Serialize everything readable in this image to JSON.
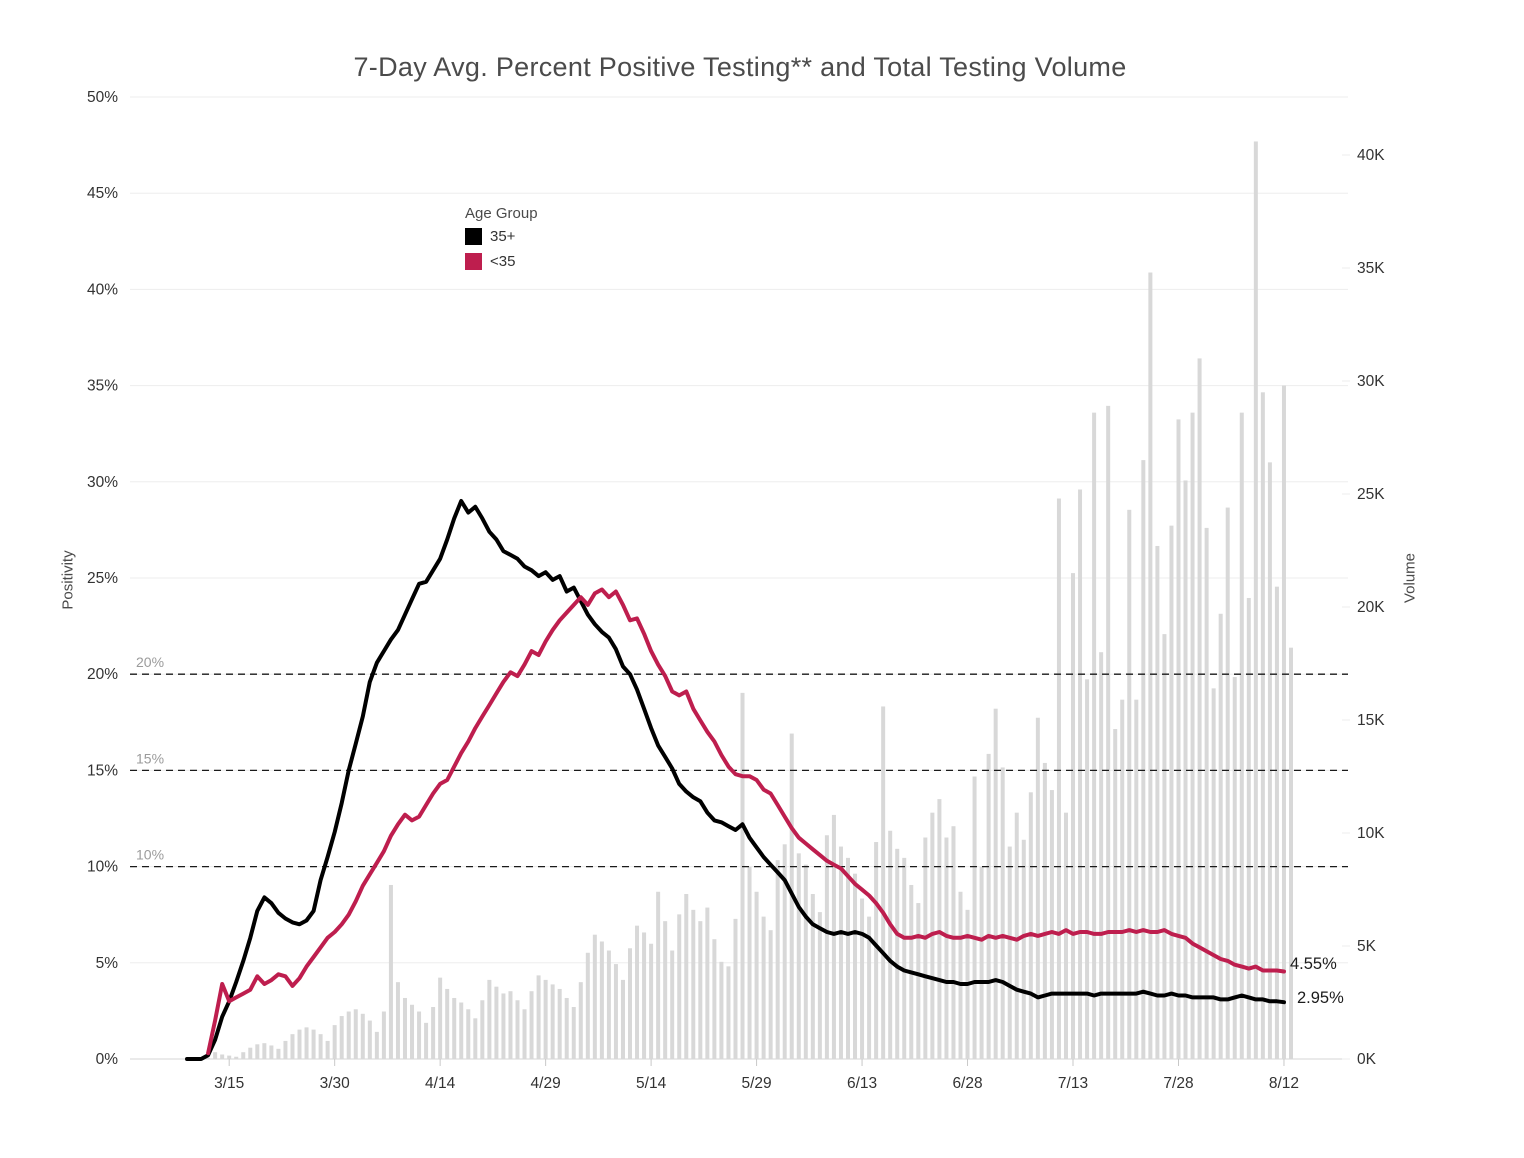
{
  "title": "7-Day Avg. Percent Positive Testing** and Total Testing Volume",
  "legend": {
    "title": "Age Group",
    "items": [
      {
        "label": "35+",
        "color": "#000000"
      },
      {
        "label": "<35",
        "color": "#be1e4e"
      }
    ]
  },
  "left_axis": {
    "title": "Positivity",
    "tick_labels": [
      "0%",
      "5%",
      "10%",
      "15%",
      "20%",
      "25%",
      "30%",
      "35%",
      "40%",
      "45%",
      "50%"
    ]
  },
  "right_axis": {
    "title": "Volume",
    "tick_labels": [
      "0K",
      "5K",
      "10K",
      "15K",
      "20K",
      "25K",
      "30K",
      "35K",
      "40K"
    ]
  },
  "x_axis": {
    "tick_labels": [
      "3/15",
      "3/30",
      "4/14",
      "4/29",
      "5/14",
      "5/29",
      "6/13",
      "6/28",
      "7/13",
      "7/28",
      "8/12"
    ]
  },
  "reference_lines": [
    {
      "label": "20%",
      "value": 20
    },
    {
      "label": "15%",
      "value": 15
    },
    {
      "label": "10%",
      "value": 10
    }
  ],
  "end_labels": {
    "under35": "4.55%",
    "over35": "2.95%"
  },
  "colors": {
    "line_35plus": "#000000",
    "line_under35": "#be1e4e",
    "bars": "#d8d8d8",
    "gridline": "#ededed",
    "axis_line": "#d6d6d6",
    "tick_mark": "#c8c8c8",
    "reference_line": "#1a1a1a",
    "reference_label": "#9b9b9b",
    "tick_text": "#333333"
  },
  "chart_data": {
    "type": "combo-line-bar",
    "frequency": "daily",
    "x_start": "3/9",
    "x_end": "8/13",
    "x_tick_labels": [
      "3/15",
      "3/30",
      "4/14",
      "4/29",
      "5/14",
      "5/29",
      "6/13",
      "6/28",
      "7/13",
      "7/28",
      "8/12"
    ],
    "x_tick_indices": [
      6,
      21,
      36,
      51,
      66,
      81,
      96,
      111,
      126,
      141,
      156
    ],
    "left_axis": {
      "label": "Positivity",
      "min": 0,
      "max": 50,
      "unit": "%",
      "tick_step": 5
    },
    "right_axis": {
      "label": "Volume",
      "min": 0,
      "max": 40,
      "unit": "K",
      "tick_step": 5
    },
    "legend_position": "inside-top-left",
    "grid": true,
    "series": [
      {
        "name": "35+",
        "type": "line",
        "axis": "left",
        "color": "#000000",
        "end_label": "2.95%",
        "values": [
          0,
          0,
          0,
          0.2,
          1.0,
          2.2,
          3.0,
          4.0,
          5.1,
          6.3,
          7.7,
          8.4,
          8.1,
          7.6,
          7.3,
          7.1,
          7.0,
          7.2,
          7.7,
          9.3,
          10.5,
          11.8,
          13.3,
          15.0,
          16.4,
          17.8,
          19.6,
          20.6,
          21.2,
          21.8,
          22.3,
          23.1,
          23.9,
          24.7,
          24.8,
          25.4,
          26.0,
          27.0,
          28.1,
          29.0,
          28.4,
          28.7,
          28.1,
          27.4,
          27.0,
          26.4,
          26.2,
          26.0,
          25.6,
          25.4,
          25.1,
          25.3,
          24.9,
          25.1,
          24.3,
          24.5,
          23.8,
          23.1,
          22.6,
          22.2,
          21.9,
          21.3,
          20.4,
          20.0,
          19.2,
          18.2,
          17.2,
          16.3,
          15.7,
          15.1,
          14.3,
          13.9,
          13.6,
          13.4,
          12.8,
          12.4,
          12.3,
          12.1,
          11.9,
          12.2,
          11.5,
          11.0,
          10.5,
          10.1,
          9.7,
          9.3,
          8.6,
          7.9,
          7.4,
          7.0,
          6.8,
          6.6,
          6.5,
          6.6,
          6.5,
          6.6,
          6.5,
          6.3,
          5.9,
          5.5,
          5.1,
          4.8,
          4.6,
          4.5,
          4.4,
          4.3,
          4.2,
          4.1,
          4.0,
          4.0,
          3.9,
          3.9,
          4.0,
          4.0,
          4.0,
          4.1,
          4.0,
          3.8,
          3.6,
          3.5,
          3.4,
          3.2,
          3.3,
          3.4,
          3.4,
          3.4,
          3.4,
          3.4,
          3.4,
          3.3,
          3.4,
          3.4,
          3.4,
          3.4,
          3.4,
          3.4,
          3.5,
          3.4,
          3.3,
          3.3,
          3.4,
          3.3,
          3.3,
          3.2,
          3.2,
          3.2,
          3.2,
          3.1,
          3.1,
          3.2,
          3.3,
          3.2,
          3.1,
          3.1,
          3.0,
          3.0,
          2.95,
          null
        ]
      },
      {
        "name": "<35",
        "type": "line",
        "axis": "left",
        "color": "#be1e4e",
        "end_label": "4.55%",
        "values": [
          null,
          null,
          null,
          0.3,
          2.0,
          3.9,
          3.0,
          3.2,
          3.4,
          3.6,
          4.3,
          3.9,
          4.1,
          4.4,
          4.3,
          3.8,
          4.2,
          4.8,
          5.3,
          5.8,
          6.3,
          6.6,
          7.0,
          7.5,
          8.2,
          9.0,
          9.6,
          10.2,
          10.8,
          11.6,
          12.2,
          12.7,
          12.4,
          12.6,
          13.2,
          13.8,
          14.3,
          14.5,
          15.2,
          15.9,
          16.5,
          17.2,
          17.8,
          18.4,
          19.0,
          19.6,
          20.1,
          19.9,
          20.5,
          21.2,
          21.0,
          21.7,
          22.3,
          22.8,
          23.2,
          23.6,
          24.0,
          23.6,
          24.2,
          24.4,
          24.0,
          24.3,
          23.6,
          22.8,
          22.9,
          22.1,
          21.2,
          20.5,
          19.9,
          19.1,
          18.9,
          19.1,
          18.2,
          17.6,
          17.0,
          16.5,
          15.8,
          15.2,
          14.8,
          14.7,
          14.7,
          14.5,
          14.0,
          13.8,
          13.2,
          12.6,
          12.0,
          11.5,
          11.2,
          10.9,
          10.6,
          10.3,
          10.1,
          9.9,
          9.5,
          9.1,
          8.8,
          8.5,
          8.1,
          7.6,
          7.0,
          6.5,
          6.3,
          6.3,
          6.4,
          6.3,
          6.5,
          6.6,
          6.4,
          6.3,
          6.3,
          6.4,
          6.3,
          6.2,
          6.4,
          6.3,
          6.4,
          6.3,
          6.2,
          6.4,
          6.5,
          6.4,
          6.5,
          6.6,
          6.5,
          6.7,
          6.5,
          6.6,
          6.6,
          6.5,
          6.5,
          6.6,
          6.6,
          6.6,
          6.7,
          6.6,
          6.7,
          6.6,
          6.6,
          6.7,
          6.5,
          6.4,
          6.3,
          6.0,
          5.8,
          5.6,
          5.4,
          5.2,
          5.1,
          4.9,
          4.8,
          4.7,
          4.8,
          4.6,
          4.6,
          4.6,
          4.55,
          null
        ]
      },
      {
        "name": "Total Testing Volume",
        "type": "bar",
        "axis": "right",
        "color": "#d8d8d8",
        "values": [
          0,
          0,
          0,
          0.05,
          0.3,
          0.2,
          0.15,
          0.1,
          0.3,
          0.5,
          0.65,
          0.7,
          0.6,
          0.45,
          0.8,
          1.1,
          1.3,
          1.4,
          1.3,
          1.1,
          0.8,
          1.5,
          1.9,
          2.1,
          2.2,
          2.0,
          1.7,
          1.2,
          2.1,
          7.7,
          3.4,
          2.7,
          2.4,
          2.1,
          1.6,
          2.3,
          3.6,
          3.1,
          2.7,
          2.5,
          2.2,
          1.8,
          2.6,
          3.5,
          3.2,
          2.9,
          3.0,
          2.6,
          2.2,
          3.0,
          3.7,
          3.5,
          3.3,
          3.1,
          2.7,
          2.3,
          3.4,
          4.7,
          5.5,
          5.2,
          4.8,
          4.2,
          3.5,
          4.9,
          5.9,
          5.6,
          5.1,
          7.4,
          6.1,
          4.8,
          6.4,
          7.3,
          6.6,
          6.1,
          6.7,
          5.3,
          4.3,
          4.1,
          6.2,
          16.2,
          8.5,
          7.4,
          6.3,
          5.7,
          8.8,
          9.5,
          14.4,
          9.1,
          8.6,
          7.3,
          6.5,
          9.9,
          10.8,
          9.4,
          8.9,
          8.2,
          7.1,
          6.3,
          9.6,
          15.6,
          10.1,
          9.3,
          8.9,
          7.7,
          6.9,
          9.8,
          10.9,
          11.5,
          9.8,
          10.3,
          7.4,
          6.6,
          12.5,
          8.5,
          13.5,
          15.5,
          12.9,
          9.4,
          10.9,
          9.7,
          11.8,
          15.1,
          13.1,
          11.9,
          24.8,
          10.9,
          21.5,
          25.2,
          16.8,
          28.6,
          18.0,
          28.9,
          14.6,
          15.9,
          24.3,
          15.9,
          26.5,
          34.8,
          22.7,
          18.8,
          23.6,
          28.3,
          25.6,
          28.6,
          31.0,
          23.5,
          16.4,
          19.7,
          24.4,
          16.9,
          28.6,
          20.4,
          40.6,
          29.5,
          26.4,
          20.9,
          29.8,
          18.2
        ]
      }
    ],
    "reference_lines": [
      {
        "label": "20%",
        "value": 20,
        "axis": "left",
        "style": "dashed"
      },
      {
        "label": "15%",
        "value": 15,
        "axis": "left",
        "style": "dashed"
      },
      {
        "label": "10%",
        "value": 10,
        "axis": "left",
        "style": "dashed"
      }
    ]
  }
}
